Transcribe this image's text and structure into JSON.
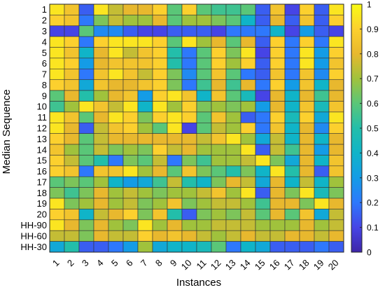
{
  "chart_data": {
    "type": "heatmap",
    "title": "",
    "xlabel": "Instances",
    "ylabel": "Median Sequence",
    "x_categories": [
      "1",
      "2",
      "3",
      "4",
      "5",
      "6",
      "7",
      "8",
      "9",
      "10",
      "11",
      "12",
      "13",
      "14",
      "15",
      "16",
      "17",
      "18",
      "19",
      "20"
    ],
    "y_categories": [
      "1",
      "2",
      "3",
      "4",
      "5",
      "6",
      "7",
      "8",
      "9",
      "10",
      "11",
      "12",
      "13",
      "14",
      "15",
      "16",
      "17",
      "18",
      "19",
      "20",
      "HH-90",
      "HH-60",
      "HH-30"
    ],
    "value_range": [
      0,
      1
    ],
    "colorbar": {
      "ticks": [
        "0",
        "0.1",
        "0.2",
        "0.3",
        "0.4",
        "0.5",
        "0.6",
        "0.7",
        "0.8",
        "0.9",
        "1"
      ],
      "colormap": "parula",
      "placement": "right"
    },
    "values": [
      [
        0.95,
        0.85,
        0.15,
        0.95,
        0.75,
        0.8,
        0.8,
        0.9,
        0.6,
        0.9,
        0.6,
        0.55,
        0.55,
        0.6,
        0.15,
        0.85,
        0.1,
        0.9,
        0.15,
        0.95
      ],
      [
        0.9,
        0.85,
        0.2,
        0.65,
        0.75,
        0.7,
        0.7,
        0.8,
        0.6,
        0.7,
        0.7,
        0.65,
        0.6,
        0.4,
        0.15,
        0.8,
        0.15,
        0.85,
        0.15,
        0.9
      ],
      [
        0.1,
        0.1,
        0.6,
        0.25,
        0.25,
        0.15,
        0.1,
        0.1,
        0.15,
        0.15,
        0.15,
        0.1,
        0.2,
        0.2,
        0.2,
        0.4,
        0.1,
        0.3,
        0.15,
        0.1
      ],
      [
        0.95,
        0.9,
        0.2,
        0.9,
        0.95,
        0.95,
        0.95,
        0.9,
        0.6,
        0.95,
        0.7,
        0.8,
        0.6,
        0.8,
        0.15,
        0.9,
        0.2,
        0.9,
        0.2,
        0.95
      ],
      [
        0.95,
        0.85,
        0.4,
        0.8,
        0.95,
        0.75,
        0.85,
        0.9,
        0.5,
        0.2,
        0.6,
        0.9,
        0.65,
        0.95,
        0.1,
        0.9,
        0.2,
        0.95,
        0.3,
        0.9
      ],
      [
        0.95,
        0.9,
        0.3,
        0.8,
        0.85,
        0.85,
        0.85,
        0.9,
        0.5,
        0.2,
        0.6,
        0.9,
        0.7,
        0.9,
        0.15,
        0.9,
        0.2,
        0.95,
        0.3,
        0.85
      ],
      [
        0.95,
        0.85,
        0.2,
        0.85,
        0.95,
        0.85,
        0.75,
        0.9,
        0.65,
        0.25,
        0.6,
        0.85,
        0.6,
        0.2,
        0.15,
        0.85,
        0.2,
        0.85,
        0.25,
        0.9
      ],
      [
        0.9,
        0.85,
        0.35,
        0.85,
        0.8,
        0.8,
        0.85,
        0.9,
        0.65,
        0.2,
        0.55,
        0.8,
        0.55,
        0.8,
        0.2,
        0.9,
        0.3,
        0.85,
        0.4,
        0.8
      ],
      [
        0.6,
        0.8,
        0.5,
        0.7,
        0.8,
        0.85,
        0.3,
        0.9,
        0.95,
        0.85,
        0.4,
        0.85,
        0.6,
        0.45,
        0.1,
        0.8,
        0.4,
        0.8,
        0.55,
        0.8
      ],
      [
        0.55,
        0.7,
        0.95,
        0.85,
        0.75,
        0.95,
        0.4,
        0.95,
        0.7,
        0.9,
        0.65,
        0.7,
        0.65,
        0.7,
        0.3,
        0.8,
        0.4,
        0.85,
        0.45,
        0.85
      ],
      [
        0.95,
        0.85,
        0.6,
        0.8,
        0.95,
        0.9,
        0.65,
        0.9,
        0.95,
        0.9,
        0.6,
        0.85,
        0.7,
        0.15,
        0.2,
        0.9,
        0.45,
        0.9,
        0.35,
        0.95
      ],
      [
        0.95,
        0.8,
        0.15,
        0.75,
        0.85,
        0.9,
        0.7,
        0.6,
        0.95,
        0.1,
        0.6,
        0.75,
        0.7,
        0.9,
        0.2,
        0.85,
        0.4,
        0.8,
        0.25,
        0.9
      ],
      [
        0.9,
        0.8,
        0.6,
        0.75,
        0.8,
        0.8,
        0.8,
        0.8,
        0.8,
        0.8,
        0.75,
        0.85,
        0.95,
        0.7,
        0.35,
        0.75,
        0.4,
        0.8,
        0.4,
        0.8
      ],
      [
        0.85,
        0.7,
        0.6,
        0.75,
        0.65,
        0.7,
        0.65,
        0.9,
        0.75,
        0.8,
        0.7,
        0.7,
        0.7,
        0.95,
        0.15,
        0.75,
        0.55,
        0.8,
        0.3,
        0.8
      ],
      [
        0.9,
        0.75,
        0.6,
        0.5,
        0.2,
        0.65,
        0.6,
        0.75,
        0.2,
        0.65,
        0.55,
        0.7,
        0.7,
        0.75,
        0.95,
        0.65,
        0.35,
        0.8,
        0.4,
        0.85
      ],
      [
        0.9,
        0.85,
        0.2,
        0.85,
        0.85,
        0.95,
        0.7,
        0.8,
        0.6,
        0.85,
        0.65,
        0.6,
        0.5,
        0.65,
        0.4,
        0.95,
        0.5,
        0.8,
        0.15,
        0.85
      ],
      [
        0.6,
        0.65,
        0.6,
        0.7,
        0.4,
        0.3,
        0.35,
        0.55,
        0.75,
        0.5,
        0.4,
        0.65,
        0.8,
        0.75,
        0.35,
        0.8,
        0.4,
        0.75,
        0.4,
        0.7
      ],
      [
        0.65,
        0.55,
        0.65,
        0.8,
        0.7,
        0.75,
        0.7,
        0.65,
        0.7,
        0.7,
        0.75,
        0.85,
        0.7,
        0.95,
        0.15,
        0.8,
        0.65,
        0.95,
        0.45,
        0.65
      ],
      [
        0.95,
        0.65,
        0.7,
        0.8,
        0.7,
        0.75,
        0.65,
        0.7,
        0.85,
        0.65,
        0.7,
        0.75,
        0.75,
        0.7,
        0.55,
        0.8,
        0.8,
        0.65,
        0.95,
        0.8
      ],
      [
        0.9,
        0.85,
        0.4,
        0.75,
        0.8,
        0.9,
        0.65,
        0.85,
        0.5,
        0.15,
        0.65,
        0.7,
        0.65,
        0.75,
        0.6,
        0.8,
        0.6,
        0.85,
        0.35,
        0.75
      ],
      [
        0.95,
        0.8,
        0.65,
        0.8,
        0.7,
        0.65,
        0.95,
        0.7,
        0.8,
        0.7,
        0.7,
        0.75,
        0.75,
        0.75,
        0.7,
        0.7,
        0.7,
        0.8,
        0.7,
        0.75
      ],
      [
        0.75,
        0.75,
        0.65,
        0.8,
        0.75,
        0.75,
        0.9,
        0.8,
        0.85,
        0.8,
        0.75,
        0.7,
        0.75,
        0.8,
        0.75,
        0.75,
        0.8,
        0.8,
        0.75,
        0.8
      ],
      [
        0.35,
        0.5,
        0.15,
        0.15,
        0.2,
        0.3,
        0.7,
        0.35,
        0.4,
        0.4,
        0.45,
        0.6,
        0.2,
        0.4,
        0.35,
        0.15,
        0.15,
        0.15,
        0.2,
        0.15
      ]
    ]
  }
}
